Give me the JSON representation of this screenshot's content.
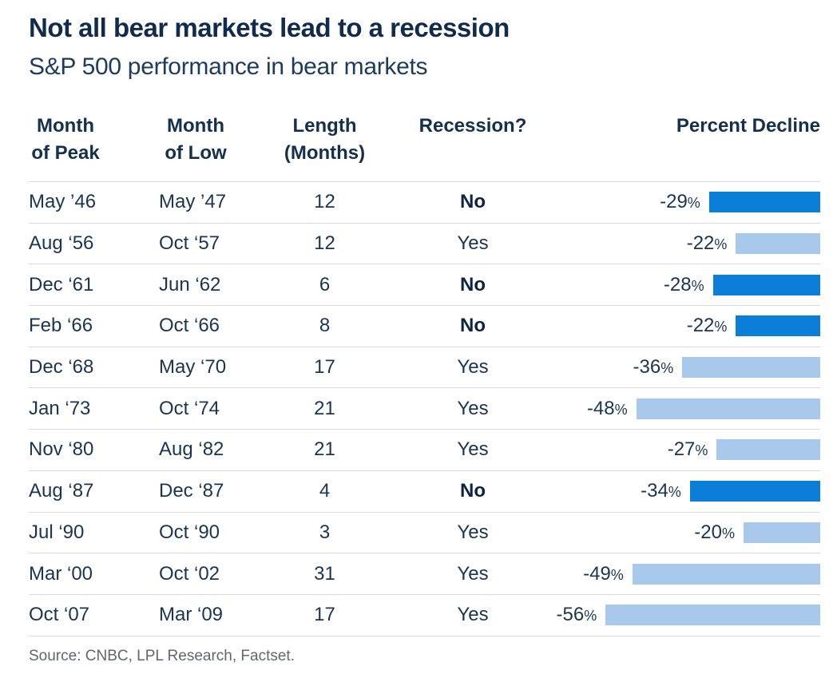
{
  "header": {
    "title": "Not all bear markets lead to a recession",
    "subtitle": "S&P 500 performance in bear markets"
  },
  "table": {
    "columns": [
      {
        "id": "month_of_peak",
        "line1": "Month",
        "line2": "of Peak"
      },
      {
        "id": "month_of_low",
        "line1": "Month",
        "line2": "of Low"
      },
      {
        "id": "length_months",
        "line1": "Length",
        "line2": "(Months)"
      },
      {
        "id": "recession",
        "line1": "Recession?",
        "line2": ""
      },
      {
        "id": "percent_decline",
        "line1": "Percent Decline",
        "line2": ""
      }
    ],
    "rows": [
      {
        "peak": "May ’46",
        "low": "May ’47",
        "length": "12",
        "recession": "No",
        "recession_bold": true,
        "decline_pct": 29,
        "decline_label": "-29%",
        "bar": "dark"
      },
      {
        "peak": "Aug ‘56",
        "low": "Oct ‘57",
        "length": "12",
        "recession": "Yes",
        "recession_bold": false,
        "decline_pct": 22,
        "decline_label": "-22%",
        "bar": "light"
      },
      {
        "peak": "Dec ‘61",
        "low": "Jun ‘62",
        "length": "6",
        "recession": "No",
        "recession_bold": true,
        "decline_pct": 28,
        "decline_label": "-28%",
        "bar": "dark"
      },
      {
        "peak": "Feb ‘66",
        "low": "Oct ‘66",
        "length": "8",
        "recession": "No",
        "recession_bold": true,
        "decline_pct": 22,
        "decline_label": "-22%",
        "bar": "dark"
      },
      {
        "peak": "Dec ‘68",
        "low": "May ‘70",
        "length": "17",
        "recession": "Yes",
        "recession_bold": false,
        "decline_pct": 36,
        "decline_label": "-36%",
        "bar": "light"
      },
      {
        "peak": "Jan ‘73",
        "low": "Oct ‘74",
        "length": "21",
        "recession": "Yes",
        "recession_bold": false,
        "decline_pct": 48,
        "decline_label": "-48%",
        "bar": "light"
      },
      {
        "peak": "Nov ‘80",
        "low": "Aug ‘82",
        "length": "21",
        "recession": "Yes",
        "recession_bold": false,
        "decline_pct": 27,
        "decline_label": "-27%",
        "bar": "light"
      },
      {
        "peak": "Aug ‘87",
        "low": "Dec ‘87",
        "length": "4",
        "recession": "No",
        "recession_bold": true,
        "decline_pct": 34,
        "decline_label": "-34%",
        "bar": "dark"
      },
      {
        "peak": "Jul ‘90",
        "low": "Oct ‘90",
        "length": "3",
        "recession": "Yes",
        "recession_bold": false,
        "decline_pct": 20,
        "decline_label": "-20%",
        "bar": "light"
      },
      {
        "peak": "Mar ‘00",
        "low": "Oct ‘02",
        "length": "31",
        "recession": "Yes",
        "recession_bold": false,
        "decline_pct": 49,
        "decline_label": "-49%",
        "bar": "light"
      },
      {
        "peak": "Oct ‘07",
        "low": "Mar ‘09",
        "length": "17",
        "recession": "Yes",
        "recession_bold": false,
        "decline_pct": 56,
        "decline_label": "-56%",
        "bar": "light"
      }
    ]
  },
  "source": "Source: CNBC, LPL Research, Factset.",
  "colors": {
    "bar_no_recession_dark_blue": "#0b7fd7",
    "bar_recession_light_blue": "#a8c8ec",
    "title_navy": "#112b4d",
    "body_navy": "#1a3553",
    "separator_gray": "#d9d9d9",
    "source_gray": "#63666b"
  },
  "chart_data": {
    "type": "bar",
    "title": "Not all bear markets lead to a recession",
    "subtitle": "S&P 500 performance in bear markets",
    "columns": [
      "Month of Peak",
      "Month of Low",
      "Length (Months)",
      "Recession?",
      "Percent Decline"
    ],
    "rows": [
      [
        "May ’46",
        "May ’47",
        12,
        "No",
        -29
      ],
      [
        "Aug ‘56",
        "Oct ‘57",
        12,
        "Yes",
        -22
      ],
      [
        "Dec ‘61",
        "Jun ‘62",
        6,
        "No",
        -28
      ],
      [
        "Feb ‘66",
        "Oct ‘66",
        8,
        "No",
        -22
      ],
      [
        "Dec ‘68",
        "May ‘70",
        17,
        "Yes",
        -36
      ],
      [
        "Jan ‘73",
        "Oct ‘74",
        21,
        "Yes",
        -48
      ],
      [
        "Nov ‘80",
        "Aug ‘82",
        21,
        "Yes",
        -27
      ],
      [
        "Aug ‘87",
        "Dec ‘87",
        4,
        "No",
        -34
      ],
      [
        "Jul ‘90",
        "Oct ‘90",
        3,
        "Yes",
        -20
      ],
      [
        "Mar ‘00",
        "Oct ‘02",
        31,
        "Yes",
        -49
      ],
      [
        "Oct ‘07",
        "Mar ‘09",
        17,
        "Yes",
        -56
      ]
    ],
    "bar_column": "Percent Decline",
    "bar_orientation": "horizontal, right-aligned, length proportional to decline magnitude",
    "bar_range_pct": [
      0,
      56
    ],
    "color_coding": {
      "No": "#0b7fd7",
      "Yes": "#a8c8ec"
    },
    "legend_position": "none",
    "grid": "horizontal row separators only",
    "source": "Source: CNBC, LPL Research, Factset."
  }
}
